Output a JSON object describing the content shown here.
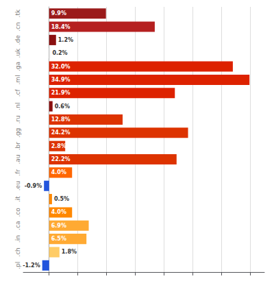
{
  "chart_data": {
    "type": "bar",
    "orientation": "horizontal",
    "categories": [
      ".tk",
      ".cn",
      ".de",
      ".uk",
      ".ga",
      ".ml",
      ".cf",
      ".nl",
      ".ru",
      ".gg",
      ".br",
      ".au",
      ".fr",
      ".eu",
      ".it",
      ".co",
      ".ca",
      ".in",
      ".ch",
      ".pl"
    ],
    "values": [
      9.9,
      18.4,
      1.2,
      0.2,
      32.0,
      34.9,
      21.9,
      0.6,
      12.8,
      24.2,
      2.8,
      22.2,
      4.0,
      -0.9,
      0.5,
      4.0,
      6.9,
      6.5,
      1.8,
      -1.2
    ],
    "value_labels": [
      "9.9%",
      "18.4%",
      "1.2%",
      "0.2%",
      "32.0%",
      "34.9%",
      "21.9%",
      "0.6%",
      "12.8%",
      "24.2%",
      "2.8%",
      "22.2%",
      "4.0%",
      "-0.9%",
      "0.5%",
      "4.0%",
      "6.9%",
      "6.5%",
      "1.8%",
      "-1.2%"
    ],
    "colors": [
      "#9B1B1B",
      "#B52020",
      "#8B1010",
      "#f0f0f0",
      "#DD2200",
      "#DD2200",
      "#DD2200",
      "#8B1010",
      "#DD3300",
      "#DD3300",
      "#DD3300",
      "#DD3300",
      "#FF6600",
      "#2255DD",
      "#FF8800",
      "#FF8800",
      "#FFAA33",
      "#FFAA33",
      "#FFCC66",
      "#2255DD"
    ],
    "xlim": [
      -4.5,
      37.5
    ],
    "xticks": [
      0,
      5,
      10,
      15,
      20,
      25,
      30,
      35
    ],
    "grid": true,
    "data_labels": true,
    "tick_labels": "y"
  }
}
